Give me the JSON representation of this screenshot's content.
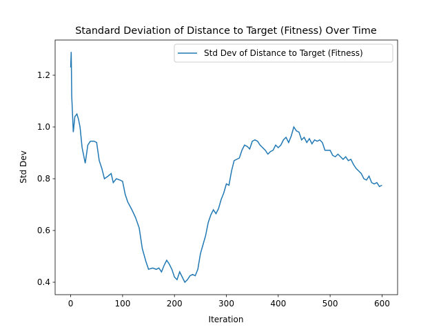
{
  "chart_data": {
    "type": "line",
    "title": "Standard Deviation of Distance to Target (Fitness) Over Time",
    "xlabel": "Iteration",
    "ylabel": "Std Dev",
    "x": [
      0,
      1,
      2,
      5,
      8,
      12,
      15,
      18,
      22,
      28,
      33,
      38,
      45,
      50,
      55,
      60,
      65,
      72,
      78,
      82,
      88,
      95,
      100,
      105,
      110,
      118,
      125,
      132,
      138,
      145,
      150,
      158,
      165,
      170,
      175,
      180,
      185,
      190,
      195,
      200,
      205,
      210,
      215,
      220,
      225,
      230,
      235,
      240,
      245,
      250,
      255,
      260,
      265,
      270,
      275,
      280,
      285,
      290,
      295,
      300,
      305,
      310,
      315,
      320,
      325,
      330,
      335,
      340,
      345,
      350,
      355,
      360,
      365,
      370,
      375,
      380,
      385,
      390,
      395,
      400,
      405,
      410,
      415,
      420,
      425,
      430,
      435,
      440,
      445,
      450,
      455,
      460,
      465,
      470,
      475,
      480,
      485,
      490,
      495,
      500,
      505,
      510,
      515,
      520,
      525,
      530,
      535,
      540,
      545,
      550,
      555,
      560,
      565,
      570,
      575,
      580,
      585,
      590,
      595,
      600
    ],
    "series": [
      {
        "name": "Std Dev of Distance to Target (Fitness)",
        "color": "#1f77b4",
        "values": [
          1.23,
          1.29,
          1.12,
          0.98,
          1.04,
          1.05,
          1.03,
          1.0,
          0.92,
          0.86,
          0.93,
          0.945,
          0.945,
          0.94,
          0.87,
          0.84,
          0.8,
          0.81,
          0.82,
          0.785,
          0.8,
          0.795,
          0.79,
          0.74,
          0.71,
          0.68,
          0.65,
          0.61,
          0.53,
          0.48,
          0.45,
          0.455,
          0.45,
          0.455,
          0.44,
          0.465,
          0.485,
          0.47,
          0.45,
          0.42,
          0.41,
          0.44,
          0.42,
          0.4,
          0.41,
          0.425,
          0.43,
          0.425,
          0.45,
          0.51,
          0.545,
          0.58,
          0.63,
          0.66,
          0.68,
          0.665,
          0.685,
          0.72,
          0.745,
          0.78,
          0.775,
          0.83,
          0.87,
          0.875,
          0.88,
          0.91,
          0.93,
          0.925,
          0.915,
          0.945,
          0.95,
          0.945,
          0.93,
          0.92,
          0.91,
          0.895,
          0.905,
          0.91,
          0.93,
          0.92,
          0.93,
          0.95,
          0.96,
          0.94,
          0.965,
          1.0,
          0.985,
          0.98,
          0.95,
          0.96,
          0.94,
          0.955,
          0.935,
          0.95,
          0.945,
          0.95,
          0.94,
          0.91,
          0.91,
          0.91,
          0.89,
          0.885,
          0.895,
          0.885,
          0.875,
          0.885,
          0.87,
          0.875,
          0.855,
          0.84,
          0.83,
          0.82,
          0.8,
          0.795,
          0.81,
          0.785,
          0.78,
          0.785,
          0.77,
          0.775
        ]
      }
    ],
    "xlim": [
      -30,
      630
    ],
    "xticks": [
      0,
      100,
      200,
      300,
      400,
      500,
      600
    ],
    "ylim": [
      0.352,
      1.336
    ],
    "yticks": [
      0.4,
      0.6,
      0.8,
      {
        "value": 1,
        "label": "1.0"
      },
      1.2
    ],
    "legend": "upper right"
  }
}
